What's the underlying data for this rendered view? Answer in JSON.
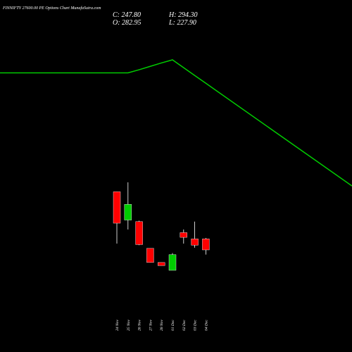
{
  "header": {
    "title": "FINNIFTY 27600.00 PE Options  Chart MunafaSutra.com",
    "close_text": "C: 247.80",
    "open_text": "O: 282.95",
    "high_text": "H: 294.30",
    "low_text": "L: 227.90"
  },
  "colors": {
    "background": "#000000",
    "up": "#00cc00",
    "down": "#ff0000",
    "line": "#00cc00",
    "wick": "#ffffff"
  },
  "chart_data": {
    "type": "candlestick",
    "categories": [
      "24 Nov",
      "25 Nov",
      "26 Nov",
      "27 Nov",
      "28 Nov",
      "01 Dec",
      "02 Dec",
      "03 Dec",
      "04 Dec"
    ],
    "ohlc": [
      {
        "open": 550,
        "high": 550,
        "low": 385,
        "close": 450
      },
      {
        "open": 460,
        "high": 580,
        "low": 430,
        "close": 510
      },
      {
        "open": 455,
        "high": 458,
        "low": 380,
        "close": 382
      },
      {
        "open": 370,
        "high": 370,
        "low": 325,
        "close": 325
      },
      {
        "open": 325,
        "high": 325,
        "low": 315,
        "close": 315
      },
      {
        "open": 300,
        "high": 355,
        "low": 300,
        "close": 350
      },
      {
        "open": 420,
        "high": 430,
        "low": 385,
        "close": 405
      },
      {
        "open": 400,
        "high": 455,
        "low": 372,
        "close": 380
      },
      {
        "open": 400,
        "high": 403,
        "low": 350,
        "close": 365
      }
    ],
    "line_series": [
      {
        "x": "24 Nov",
        "y": 1100
      },
      {
        "x": "25 Nov",
        "y": 1100
      },
      {
        "x": "26 Nov",
        "y": 1112
      },
      {
        "x": "27 Nov",
        "y": 1125
      },
      {
        "x": "28 Nov",
        "y": 1138
      },
      {
        "x": "01 Dec",
        "y": 1150
      },
      {
        "x": "02 Dec",
        "y": 1120
      },
      {
        "x": "03 Dec",
        "y": 1090
      },
      {
        "x": "04 Dec",
        "y": 1060
      }
    ],
    "xlabel": "",
    "ylabel": ""
  }
}
